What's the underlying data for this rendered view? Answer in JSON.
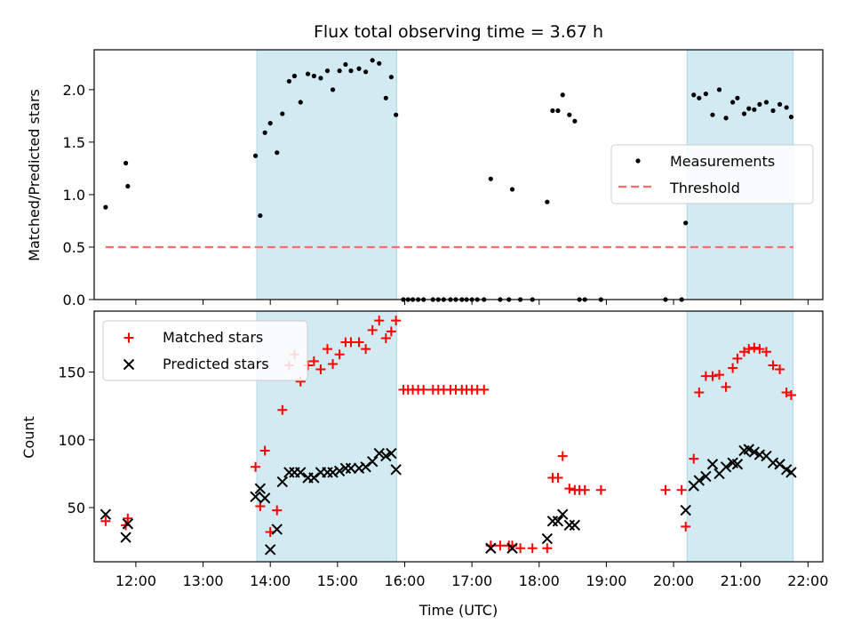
{
  "figure": {
    "title": "Flux total observing time = 3.67 h",
    "xlabel": "Time (UTC)",
    "xticks": [
      "12:00",
      "13:00",
      "14:00",
      "15:00",
      "16:00",
      "17:00",
      "18:00",
      "19:00",
      "20:00",
      "21:00",
      "22:00"
    ]
  },
  "chart_data": [
    {
      "type": "scatter",
      "panel": "top",
      "ylabel": "Matched/Predicted stars",
      "xlim": [
        11.38,
        22.22
      ],
      "ylim": [
        0.0,
        2.38
      ],
      "yticks": [
        "0.0",
        "0.5",
        "1.0",
        "1.5",
        "2.0"
      ],
      "shaded_x_ranges": [
        [
          13.8,
          15.88
        ],
        [
          20.2,
          21.78
        ]
      ],
      "colors": {
        "measurements": "#000000",
        "threshold": "#ff6b6b",
        "shading": "#add8e6"
      },
      "legend": {
        "position": "center-right",
        "entries": [
          "Measurements",
          "Threshold"
        ]
      },
      "threshold": {
        "name": "Threshold",
        "y": 0.5,
        "x": [
          11.55,
          21.78
        ]
      },
      "series": [
        {
          "name": "Measurements",
          "x": [
            11.55,
            11.85,
            11.88,
            13.78,
            13.85,
            13.92,
            14.0,
            14.1,
            14.18,
            14.28,
            14.36,
            14.45,
            14.56,
            14.65,
            14.75,
            14.85,
            14.93,
            15.03,
            15.12,
            15.2,
            15.32,
            15.42,
            15.52,
            15.62,
            15.72,
            15.8,
            15.87,
            15.98,
            16.05,
            16.12,
            16.2,
            16.28,
            16.42,
            16.5,
            16.58,
            16.68,
            16.76,
            16.85,
            16.92,
            17.0,
            17.08,
            17.18,
            17.28,
            17.42,
            17.55,
            17.6,
            17.72,
            17.9,
            18.12,
            18.2,
            18.28,
            18.35,
            18.45,
            18.53,
            18.6,
            18.68,
            18.92,
            19.88,
            20.12,
            20.18,
            20.3,
            20.38,
            20.48,
            20.58,
            20.68,
            20.78,
            20.88,
            20.95,
            21.05,
            21.12,
            21.2,
            21.28,
            21.38,
            21.48,
            21.58,
            21.68,
            21.75
          ],
          "y": [
            0.88,
            1.3,
            1.08,
            1.37,
            0.8,
            1.59,
            1.68,
            1.4,
            1.77,
            2.08,
            2.13,
            1.88,
            2.15,
            2.13,
            2.11,
            2.18,
            2.0,
            2.18,
            2.24,
            2.18,
            2.2,
            2.17,
            2.28,
            2.25,
            1.92,
            2.12,
            1.76,
            0.0,
            0.0,
            0.0,
            0.0,
            0.0,
            0.0,
            0.0,
            0.0,
            0.0,
            0.0,
            0.0,
            0.0,
            0.0,
            0.0,
            0.0,
            1.15,
            0.0,
            0.0,
            1.05,
            0.0,
            0.0,
            0.93,
            1.8,
            1.8,
            1.95,
            1.76,
            1.7,
            0.0,
            0.0,
            0.0,
            0.0,
            0.0,
            0.73,
            1.95,
            1.92,
            1.96,
            1.76,
            2.0,
            1.73,
            1.88,
            1.92,
            1.77,
            1.82,
            1.81,
            1.86,
            1.88,
            1.8,
            1.86,
            1.83,
            1.74
          ]
        }
      ]
    },
    {
      "type": "scatter",
      "panel": "bottom",
      "ylabel": "Count",
      "xlim": [
        11.38,
        22.22
      ],
      "ylim": [
        10,
        195
      ],
      "yticks": [
        "50",
        "100",
        "150"
      ],
      "shaded_x_ranges": [
        [
          13.8,
          15.88
        ],
        [
          20.2,
          21.78
        ]
      ],
      "colors": {
        "matched": "#ff0000",
        "predicted": "#000000",
        "shading": "#add8e6"
      },
      "legend": {
        "position": "top-left",
        "entries": [
          "Matched stars",
          "Predicted stars"
        ]
      },
      "series": [
        {
          "name": "Matched stars",
          "marker": "plus",
          "x": [
            11.55,
            11.85,
            11.88,
            13.78,
            13.85,
            13.92,
            14.0,
            14.1,
            14.18,
            14.28,
            14.36,
            14.45,
            14.56,
            14.65,
            14.75,
            14.85,
            14.93,
            15.03,
            15.12,
            15.2,
            15.32,
            15.42,
            15.52,
            15.62,
            15.72,
            15.8,
            15.87,
            15.98,
            16.05,
            16.12,
            16.2,
            16.28,
            16.42,
            16.5,
            16.58,
            16.68,
            16.76,
            16.85,
            16.92,
            17.0,
            17.08,
            17.18,
            17.28,
            17.42,
            17.55,
            17.6,
            17.72,
            17.9,
            18.12,
            18.2,
            18.28,
            18.35,
            18.45,
            18.53,
            18.6,
            18.68,
            18.92,
            19.88,
            20.12,
            20.18,
            20.3,
            20.38,
            20.48,
            20.58,
            20.68,
            20.78,
            20.88,
            20.95,
            21.05,
            21.12,
            21.2,
            21.28,
            21.38,
            21.48,
            21.58,
            21.68,
            21.75
          ],
          "y": [
            40,
            37,
            42,
            80,
            51,
            92,
            32,
            48,
            122,
            155,
            163,
            143,
            155,
            158,
            152,
            167,
            156,
            163,
            172,
            172,
            172,
            167,
            181,
            188,
            175,
            180,
            188,
            137,
            137,
            137,
            137,
            137,
            137,
            137,
            137,
            137,
            137,
            137,
            137,
            137,
            137,
            137,
            22,
            22,
            22,
            22,
            20,
            20,
            20,
            72,
            72,
            88,
            64,
            63,
            63,
            63,
            63,
            63,
            63,
            36,
            86,
            135,
            147,
            147,
            148,
            139,
            153,
            160,
            165,
            167,
            168,
            167,
            165,
            155,
            152,
            135,
            133
          ]
        },
        {
          "name": "Predicted stars",
          "marker": "x",
          "x": [
            11.55,
            11.85,
            11.88,
            13.78,
            13.85,
            13.92,
            14.0,
            14.1,
            14.18,
            14.28,
            14.36,
            14.45,
            14.56,
            14.65,
            14.75,
            14.85,
            14.93,
            15.03,
            15.12,
            15.2,
            15.32,
            15.42,
            15.52,
            15.62,
            15.72,
            15.8,
            15.87,
            17.28,
            17.6,
            18.12,
            18.2,
            18.28,
            18.35,
            18.45,
            18.53,
            20.18,
            20.3,
            20.38,
            20.48,
            20.58,
            20.68,
            20.78,
            20.88,
            20.95,
            21.05,
            21.12,
            21.2,
            21.28,
            21.38,
            21.48,
            21.58,
            21.68,
            21.75
          ],
          "y": [
            45,
            28,
            38,
            58,
            64,
            57,
            19,
            34,
            69,
            76,
            76,
            76,
            72,
            72,
            76,
            76,
            76,
            77,
            79,
            79,
            79,
            80,
            84,
            90,
            88,
            90,
            78,
            20,
            20,
            27,
            40,
            40,
            45,
            37,
            37,
            48,
            66,
            70,
            73,
            82,
            75,
            80,
            83,
            82,
            92,
            93,
            91,
            89,
            88,
            83,
            82,
            78,
            76
          ]
        }
      ]
    }
  ]
}
